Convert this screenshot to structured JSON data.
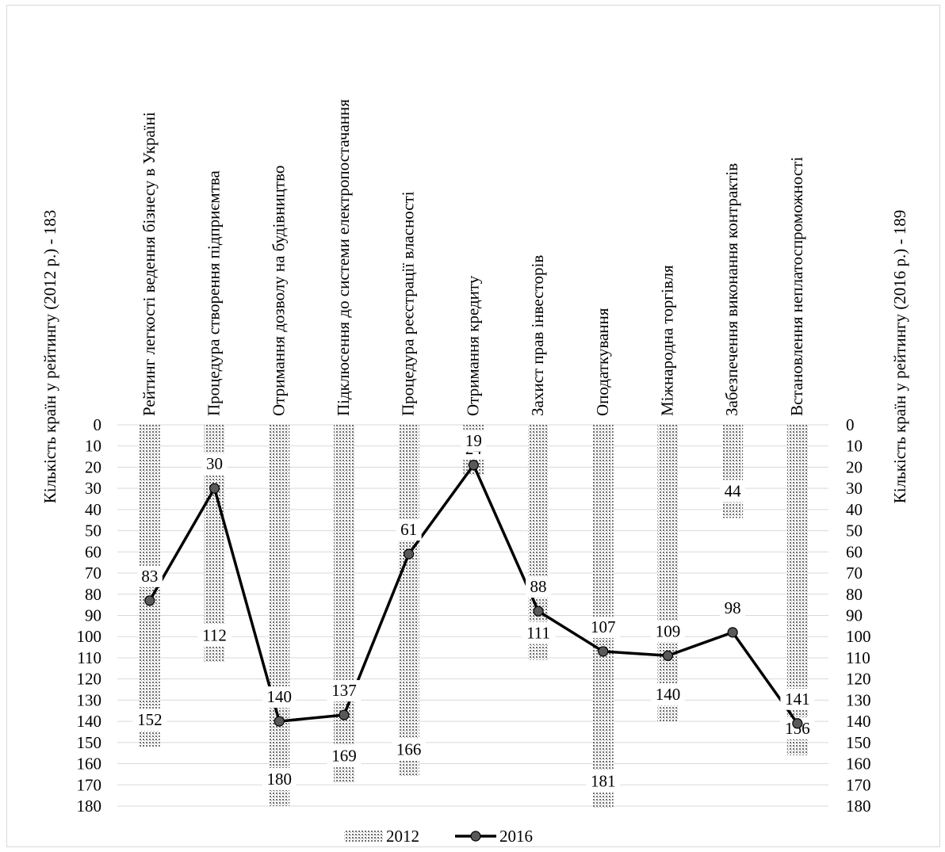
{
  "chart_data": {
    "type": "bar",
    "categories": [
      "Рейтинг легкості ведення бізнесу в Україні",
      "Процедура створення підприємтва",
      "Отримання дозволу на будівництво",
      "Підклюсення до системи електропостачання",
      "Процедура реєстрації власності",
      "Отримання кредиту",
      "Захист прав інвесторів",
      "Оподаткування",
      "Міжнародна торгівля",
      "Забезпечення виконання контрактів",
      "Встановлення неплатоспроможності"
    ],
    "series": [
      {
        "name": "2012",
        "type": "bar",
        "values": [
          152,
          112,
          180,
          169,
          166,
          24,
          111,
          181,
          140,
          44,
          156
        ]
      },
      {
        "name": "2016",
        "type": "line",
        "values": [
          83,
          30,
          140,
          137,
          61,
          19,
          88,
          107,
          109,
          98,
          141
        ]
      }
    ],
    "ylabel_left": "Кількість країн у рейтингу (2012 р.) - 183",
    "ylabel_right": "Кількість країн у рейтингу (2016 р.) - 189",
    "ylim": [
      0,
      180
    ],
    "y_ticks": [
      0,
      10,
      20,
      30,
      40,
      50,
      60,
      70,
      80,
      90,
      100,
      110,
      120,
      130,
      140,
      150,
      160,
      170,
      180
    ],
    "y_axis_inverted": true,
    "grid": true,
    "legend_position": "bottom",
    "colors": {
      "bar_pattern": "#6e6e6e",
      "line": "#000000",
      "marker": "#595959"
    }
  }
}
